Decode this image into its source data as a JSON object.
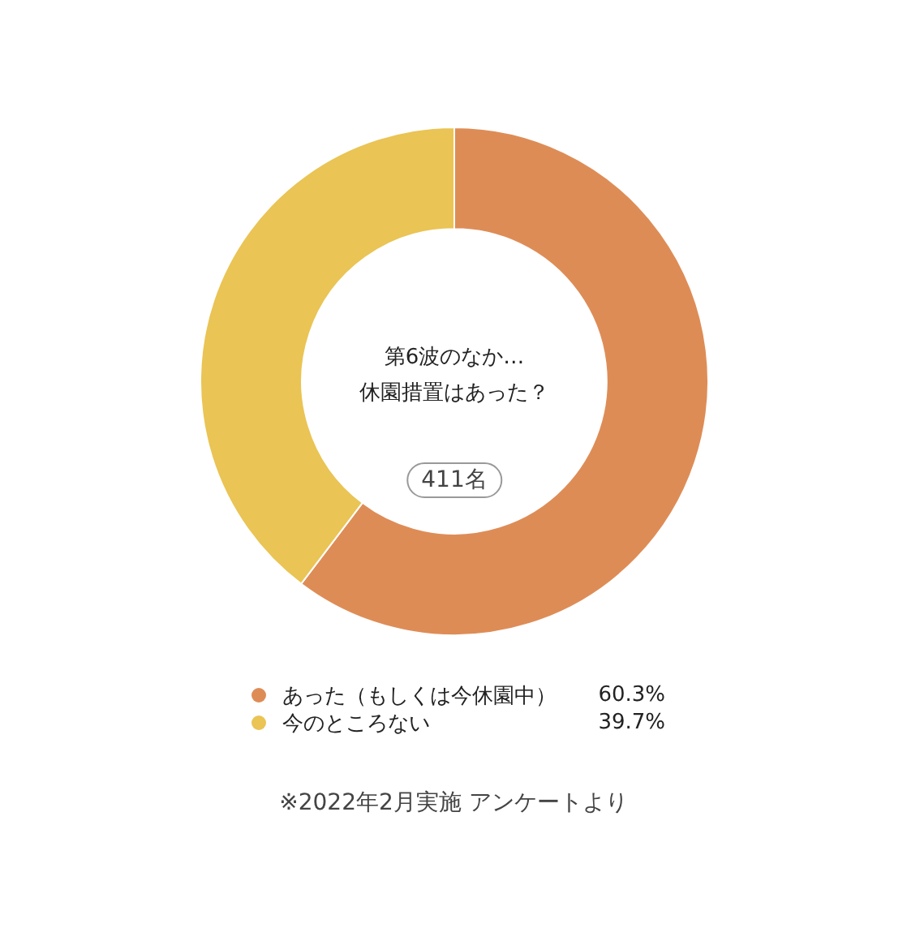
{
  "chart_data": {
    "type": "donut",
    "title": "第6波のなか…\n休園措置はあった？",
    "categories": [
      "あった（もしくは今休園中）",
      "今のところない"
    ],
    "values": [
      60.3,
      39.7
    ],
    "colors": [
      "#de8c56",
      "#eac454"
    ],
    "value_labels": [
      "60.3%",
      "39.7%"
    ],
    "legend": "bottom",
    "annotations": [
      "411名",
      "※2022年2月実施 アンケートより"
    ]
  }
}
